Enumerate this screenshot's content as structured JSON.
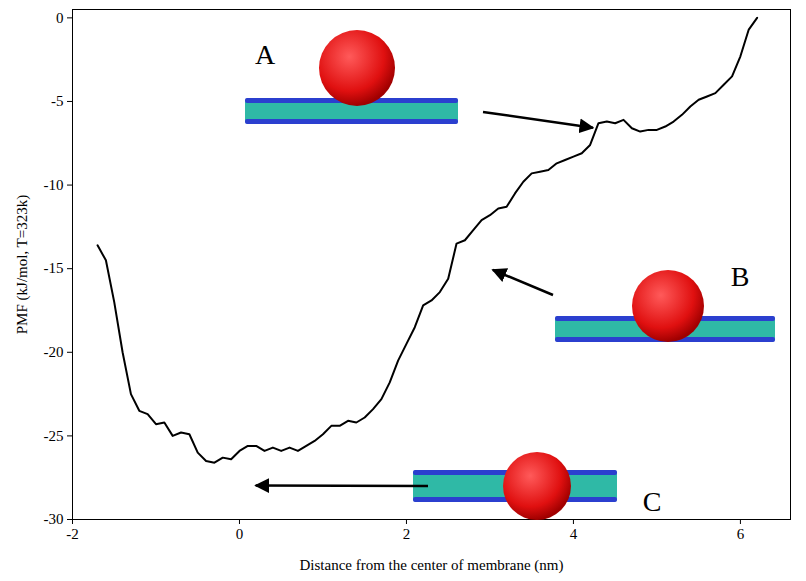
{
  "chart_data": {
    "type": "line",
    "x_label": "Distance from the center of membrane (nm)",
    "y_label": "PMF (kJ/mol, T=323k)",
    "color": "#000000",
    "xlim": [
      -2,
      6.6
    ],
    "ylim": [
      -30,
      0.5
    ],
    "xticks": [
      -2,
      0,
      2,
      4,
      6
    ],
    "yticks": [
      -30,
      -25,
      -20,
      -15,
      -10,
      -5,
      0
    ],
    "x": [
      -1.7,
      -1.6,
      -1.5,
      -1.4,
      -1.3,
      -1.2,
      -1.1,
      -1.0,
      -0.9,
      -0.8,
      -0.7,
      -0.6,
      -0.5,
      -0.4,
      -0.3,
      -0.2,
      -0.1,
      0.0,
      0.1,
      0.2,
      0.3,
      0.4,
      0.5,
      0.6,
      0.7,
      0.8,
      0.9,
      1.0,
      1.1,
      1.2,
      1.3,
      1.4,
      1.5,
      1.6,
      1.7,
      1.8,
      1.9,
      2.0,
      2.1,
      2.2,
      2.3,
      2.4,
      2.5,
      2.6,
      2.7,
      2.8,
      2.9,
      3.0,
      3.1,
      3.2,
      3.3,
      3.4,
      3.5,
      3.6,
      3.7,
      3.8,
      3.9,
      4.0,
      4.1,
      4.2,
      4.3,
      4.4,
      4.5,
      4.6,
      4.7,
      4.8,
      4.9,
      5.0,
      5.1,
      5.2,
      5.3,
      5.4,
      5.5,
      5.6,
      5.7,
      5.8,
      5.9,
      6.0,
      6.1,
      6.2
    ],
    "values": [
      -13.6,
      -14.5,
      -17,
      -20,
      -22.5,
      -23.5,
      -23.7,
      -24.3,
      -24.2,
      -25,
      -24.8,
      -24.9,
      -26,
      -26.5,
      -26.6,
      -26.3,
      -26.4,
      -25.9,
      -25.6,
      -25.6,
      -25.9,
      -25.7,
      -25.9,
      -25.7,
      -25.9,
      -25.6,
      -25.3,
      -24.9,
      -24.4,
      -24.4,
      -24.1,
      -24.2,
      -23.9,
      -23.4,
      -22.8,
      -21.8,
      -20.5,
      -19.5,
      -18.5,
      -17.2,
      -16.9,
      -16.4,
      -15.6,
      -13.5,
      -13.3,
      -12.7,
      -12.1,
      -11.8,
      -11.4,
      -11.3,
      -10.5,
      -9.8,
      -9.3,
      -9.2,
      -9.1,
      -8.7,
      -8.5,
      -8.3,
      -8.1,
      -7.6,
      -6.3,
      -6.2,
      -6.3,
      -6.1,
      -6.6,
      -6.8,
      -6.7,
      -6.7,
      -6.5,
      -6.2,
      -5.8,
      -5.3,
      -4.9,
      -4.7,
      -4.5,
      -4,
      -3.5,
      -2.3,
      -0.7,
      0
    ],
    "annotations": [
      {
        "text": "A",
        "x": 4.24,
        "y": -6.6
      },
      {
        "text": "B",
        "x": 3.04,
        "y": -15.1
      },
      {
        "text": "C",
        "x": 0.2,
        "y": -28.0
      }
    ]
  }
}
